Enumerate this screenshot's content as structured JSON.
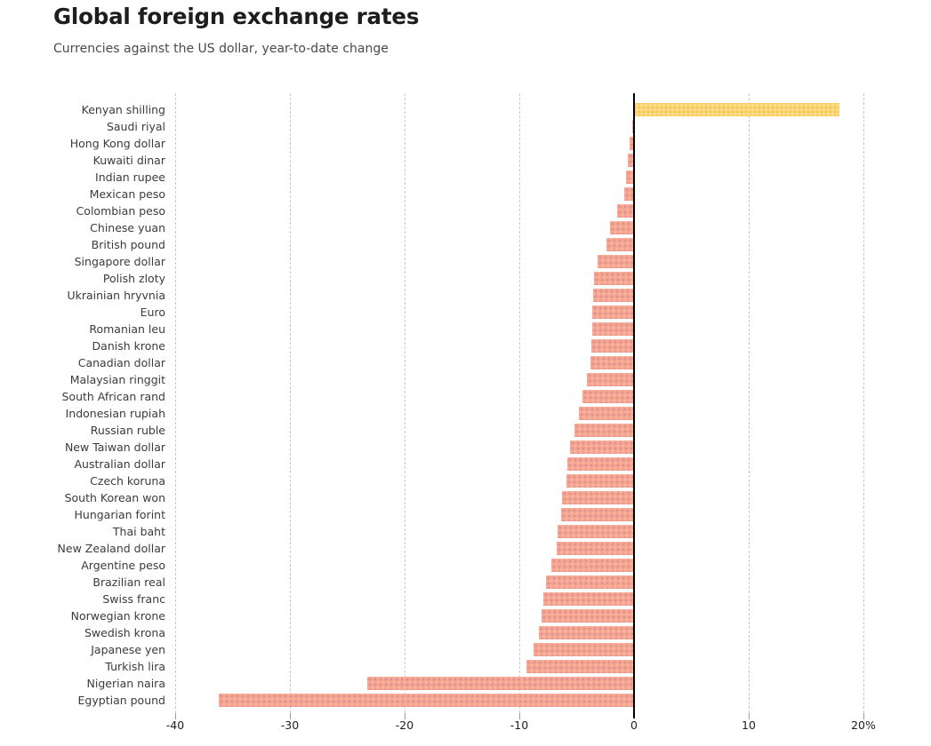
{
  "header": {
    "title": "Global foreign exchange rates",
    "subtitle": "Currencies against the US dollar, year-to-date change"
  },
  "chart_data": {
    "type": "bar",
    "orientation": "horizontal",
    "title": "Global foreign exchange rates",
    "subtitle": "Currencies against the US dollar, year-to-date change",
    "unit": "%",
    "categories": [
      "Kenyan shilling",
      "Saudi riyal",
      "Hong Kong dollar",
      "Kuwaiti dinar",
      "Indian rupee",
      "Mexican peso",
      "Colombian peso",
      "Chinese yuan",
      "British pound",
      "Singapore dollar",
      "Polish zloty",
      "Ukrainian hryvnia",
      "Euro",
      "Romanian leu",
      "Danish krone",
      "Canadian dollar",
      "Malaysian ringgit",
      "South African rand",
      "Indonesian rupiah",
      "Russian ruble",
      "New Taiwan dollar",
      "Australian dollar",
      "Czech koruna",
      "South Korean won",
      "Hungarian forint",
      "Thai baht",
      "New Zealand dollar",
      "Argentine peso",
      "Brazilian real",
      "Swiss franc",
      "Norwegian krone",
      "Swedish krona",
      "Japanese yen",
      "Turkish lira",
      "Nigerian naira",
      "Egyptian pound"
    ],
    "values": [
      17.8,
      -0.1,
      -0.3,
      -0.45,
      -0.6,
      -0.75,
      -1.4,
      -2.0,
      -2.3,
      -3.1,
      -3.4,
      -3.5,
      -3.55,
      -3.6,
      -3.65,
      -3.7,
      -4.0,
      -4.4,
      -4.7,
      -5.1,
      -5.5,
      -5.7,
      -5.8,
      -6.2,
      -6.3,
      -6.6,
      -6.7,
      -7.1,
      -7.6,
      -7.8,
      -8.0,
      -8.2,
      -8.7,
      -9.3,
      -23.2,
      -36.1
    ],
    "xlabel": "",
    "ylabel": "",
    "xlim": [
      -40,
      20
    ],
    "x_ticks": [
      -40,
      -30,
      -20,
      -10,
      0,
      10,
      20
    ],
    "x_tick_labels": [
      "-40",
      "-30",
      "-20",
      "-10",
      "0",
      "10",
      "20%"
    ],
    "grid": "vertical-dashed",
    "legend": "none",
    "colors": {
      "positive_bar": "#fbd169",
      "negative_bar": "#f7a48f",
      "zero_line": "#000000",
      "gridline": "#c9c9c9",
      "title_text": "#1d1d1d",
      "subtitle_text": "#4a4a4a",
      "label_text": "#3b3b3b",
      "tick_text": "#1f1f1f"
    }
  }
}
